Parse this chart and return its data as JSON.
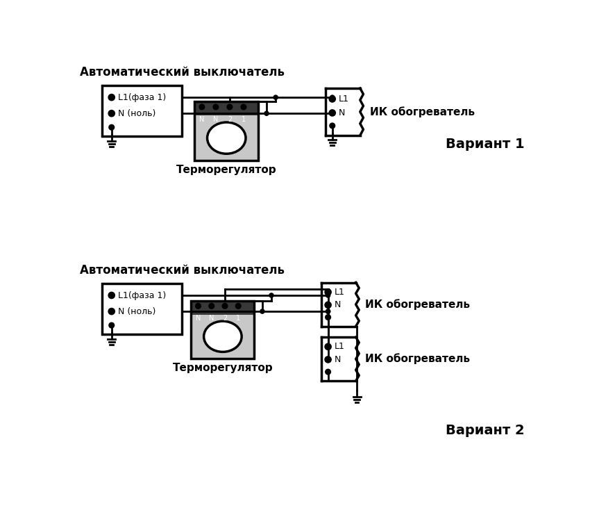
{
  "bg_color": "#ffffff",
  "line_color": "#000000",
  "title1": "Автоматический выключатель",
  "title2": "Автоматический выключатель",
  "label_L1faza": "L1(фаза 1)",
  "label_Nnol": "N (ноль)",
  "label_L1": "L1",
  "label_N": "N",
  "label_termoreg": "Терморегулятор",
  "label_IK": "ИК обогреватель",
  "label_variant1": "Вариант 1",
  "label_variant2": "Вариант 2",
  "terminal_labels": [
    "N",
    "N",
    "2",
    "1"
  ],
  "figsize": [
    8.5,
    7.44
  ],
  "dpi": 100
}
